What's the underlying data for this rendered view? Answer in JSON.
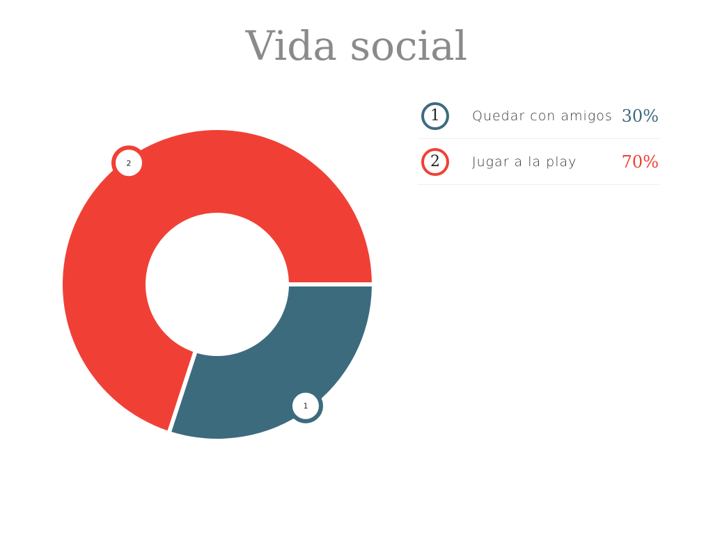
{
  "chart_data": {
    "type": "pie",
    "title": "Vida social",
    "donut": true,
    "categories": [
      "Quedar con amigos",
      "Jugar a la play"
    ],
    "values": [
      30,
      70
    ],
    "labels": [
      "1",
      "2"
    ],
    "percent_labels": [
      "30%",
      "70%"
    ],
    "colors": [
      "#3d6b7e",
      "#f04036"
    ],
    "legend": "right"
  }
}
